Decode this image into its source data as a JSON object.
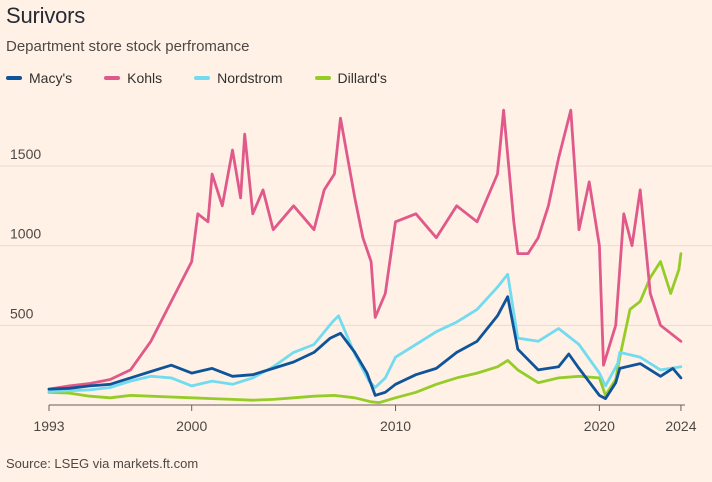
{
  "header": {
    "title": "Surivors",
    "subtitle": "Department store stock perfromance"
  },
  "footer": {
    "source": "Source: LSEG via markets.ft.com"
  },
  "chart_data": {
    "type": "line",
    "title": "Surivors",
    "subtitle": "Department store stock perfromance",
    "xlabel": "",
    "ylabel": "",
    "xlim": [
      1993,
      2024.2
    ],
    "ylim": [
      0,
      1850
    ],
    "y_ticks": [
      500,
      1000,
      1500
    ],
    "x_ticks": [
      1993,
      2000,
      2010,
      2020,
      2024
    ],
    "grid": true,
    "legend_position": "top-left",
    "series": [
      {
        "name": "Macy's",
        "color": "#0f5499",
        "x": [
          1993,
          1994,
          1995,
          1996,
          1997,
          1998,
          1999,
          2000,
          2001,
          2002,
          2003,
          2004,
          2005,
          2006,
          2006.8,
          2007.3,
          2008,
          2008.6,
          2009,
          2009.5,
          2010,
          2011,
          2012,
          2013,
          2014,
          2015,
          2015.5,
          2016,
          2017,
          2018,
          2018.5,
          2019,
          2020,
          2020.3,
          2020.8,
          2021,
          2022,
          2023,
          2023.6,
          2024
        ],
        "values": [
          100,
          105,
          120,
          130,
          170,
          210,
          250,
          200,
          230,
          180,
          190,
          230,
          270,
          330,
          420,
          450,
          330,
          200,
          60,
          80,
          130,
          190,
          230,
          330,
          400,
          560,
          680,
          350,
          220,
          240,
          320,
          230,
          60,
          40,
          140,
          230,
          260,
          180,
          230,
          170
        ]
      },
      {
        "name": "Kohls",
        "color": "#e1598a",
        "x": [
          1993,
          1994,
          1995,
          1996,
          1997,
          1998,
          1999,
          2000,
          2000.3,
          2000.8,
          2001,
          2001.5,
          2002,
          2002.4,
          2002.6,
          2003,
          2003.5,
          2004,
          2005,
          2006,
          2006.5,
          2007,
          2007.3,
          2008,
          2008.4,
          2008.8,
          2009,
          2009.5,
          2010,
          2011,
          2012,
          2013,
          2014,
          2015,
          2015.3,
          2015.8,
          2016,
          2016.5,
          2017,
          2017.5,
          2018,
          2018.6,
          2019,
          2019.5,
          2020,
          2020.2,
          2020.8,
          2021.2,
          2021.6,
          2022,
          2022.5,
          2023,
          2023.5,
          2024
        ],
        "values": [
          100,
          120,
          135,
          160,
          220,
          400,
          650,
          900,
          1200,
          1150,
          1450,
          1250,
          1600,
          1300,
          1700,
          1200,
          1350,
          1100,
          1250,
          1100,
          1350,
          1450,
          1800,
          1300,
          1050,
          900,
          550,
          700,
          1150,
          1200,
          1050,
          1250,
          1150,
          1450,
          1850,
          1150,
          950,
          950,
          1050,
          1250,
          1550,
          1850,
          1100,
          1400,
          1000,
          250,
          500,
          1200,
          1000,
          1350,
          700,
          500,
          450,
          400
        ]
      },
      {
        "name": "Nordstrom",
        "color": "#72dbf0",
        "x": [
          1993,
          1994,
          1995,
          1996,
          1997,
          1998,
          1999,
          2000,
          2001,
          2002,
          2003,
          2004,
          2005,
          2006,
          2006.9,
          2007.2,
          2008,
          2008.7,
          2009,
          2009.5,
          2010,
          2011,
          2012,
          2013,
          2014,
          2015,
          2015.5,
          2016,
          2017,
          2018,
          2019,
          2020,
          2020.3,
          2020.9,
          2021,
          2022,
          2023,
          2023.5,
          2024
        ],
        "values": [
          85,
          90,
          95,
          110,
          150,
          180,
          170,
          120,
          150,
          130,
          170,
          240,
          330,
          380,
          520,
          560,
          320,
          150,
          110,
          170,
          300,
          380,
          460,
          520,
          600,
          740,
          820,
          420,
          400,
          480,
          380,
          200,
          120,
          260,
          330,
          300,
          220,
          230,
          240
        ]
      },
      {
        "name": "Dillard's",
        "color": "#96cc28",
        "x": [
          1993,
          1994,
          1995,
          1996,
          1997,
          1998,
          1999,
          2000,
          2001,
          2002,
          2003,
          2004,
          2005,
          2006,
          2007,
          2008,
          2008.8,
          2009.2,
          2010,
          2011,
          2012,
          2013,
          2014,
          2015,
          2015.5,
          2016,
          2017,
          2018,
          2019,
          2020,
          2020.3,
          2020.8,
          2021,
          2021.5,
          2022,
          2022.5,
          2023,
          2023.5,
          2023.9,
          2024
        ],
        "values": [
          80,
          75,
          55,
          45,
          60,
          55,
          50,
          45,
          40,
          35,
          30,
          35,
          45,
          55,
          60,
          45,
          20,
          15,
          45,
          80,
          130,
          170,
          200,
          240,
          280,
          220,
          140,
          170,
          180,
          170,
          60,
          160,
          300,
          600,
          650,
          800,
          900,
          700,
          850,
          950
        ]
      }
    ]
  }
}
